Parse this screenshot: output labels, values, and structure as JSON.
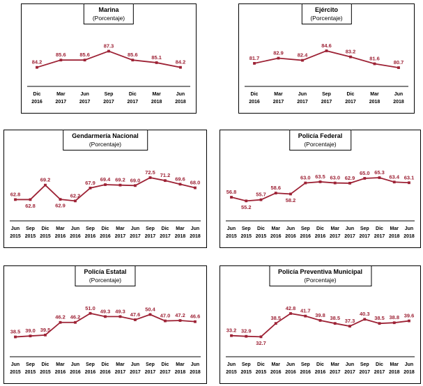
{
  "colors": {
    "series": "#9D2235",
    "text": "#000000",
    "frame": "#000000"
  },
  "chart_data": [
    {
      "type": "line",
      "id": "marina",
      "title": "Marina",
      "subtitle": "(Porcentaje)",
      "categories": [
        "Dic 2016",
        "Mar 2017",
        "Jun 2017",
        "Sep 2017",
        "Dic 2017",
        "Mar 2018",
        "Jun 2018"
      ],
      "values": [
        84.2,
        85.6,
        85.6,
        87.3,
        85.6,
        85.1,
        84.2
      ],
      "labels": [
        "84.2",
        "85.6",
        "85.6",
        "87.3",
        "85.6",
        "85.1",
        "84.2"
      ],
      "label_below": [],
      "legend": "none",
      "grid": false
    },
    {
      "type": "line",
      "id": "ejercito",
      "title": "Ejército",
      "subtitle": "(Porcentaje)",
      "categories": [
        "Dic 2016",
        "Mar 2017",
        "Jun 2017",
        "Sep 2017",
        "Dic 2017",
        "Mar 2018",
        "Jun 2018"
      ],
      "values": [
        81.7,
        82.9,
        82.4,
        84.6,
        83.2,
        81.6,
        80.7
      ],
      "labels": [
        "81.7",
        "82.9",
        "82.4",
        "84.6",
        "83.2",
        "81.6",
        "80.7"
      ],
      "label_below": [],
      "legend": "none",
      "grid": false
    },
    {
      "type": "line",
      "id": "gendarmeria-nacional",
      "title": "Gendarmería Nacional",
      "subtitle": "(Porcentaje)",
      "categories": [
        "Jun 2015",
        "Sep 2015",
        "Dic 2015",
        "Mar 2016",
        "Jun 2016",
        "Sep 2016",
        "Dic 2016",
        "Mar 2017",
        "Jun 2017",
        "Sep 2017",
        "Dic 2017",
        "Mar 2018",
        "Jun 2018"
      ],
      "values": [
        62.8,
        62.8,
        69.2,
        62.9,
        62.2,
        67.9,
        69.4,
        69.2,
        69.0,
        72.5,
        71.2,
        69.6,
        68.0
      ],
      "labels": [
        "62.8",
        "62.8",
        "69.2",
        "62.9",
        "62.2",
        "67.9",
        "69.4",
        "69.2",
        "69.0",
        "72.5",
        "71.2",
        "69.6",
        "68.0"
      ],
      "label_below": [
        1,
        3
      ],
      "legend": "none",
      "grid": false
    },
    {
      "type": "line",
      "id": "policia-federal",
      "title": "Policía Federal",
      "subtitle": "(Porcentaje)",
      "categories": [
        "Jun 2015",
        "Sep 2015",
        "Dic 2015",
        "Mar 2016",
        "Jun 2016",
        "Sep 2016",
        "Dic 2016",
        "Mar 2017",
        "Jun 2017",
        "Sep 2017",
        "Dic 2017",
        "Mar 2018",
        "Jun 2018"
      ],
      "values": [
        56.8,
        55.2,
        55.7,
        58.6,
        58.2,
        63.0,
        63.5,
        63.0,
        62.9,
        65.0,
        65.3,
        63.4,
        63.1
      ],
      "labels": [
        "56.8",
        "55.2",
        "55.7",
        "58.6",
        "58.2",
        "63.0",
        "63.5",
        "63.0",
        "62.9",
        "65.0",
        "65.3",
        "63.4",
        "63.1"
      ],
      "label_below": [
        1,
        4
      ],
      "legend": "none",
      "grid": false
    },
    {
      "type": "line",
      "id": "policia-estatal",
      "title": "Policía Estatal",
      "subtitle": "(Porcentaje)",
      "categories": [
        "Jun 2015",
        "Sep 2015",
        "Dic 2015",
        "Mar 2016",
        "Jun 2016",
        "Sep 2016",
        "Dic 2016",
        "Mar 2017",
        "Jun 2017",
        "Sep 2017",
        "Dic 2017",
        "Mar 2018",
        "Jun 2018"
      ],
      "values": [
        38.5,
        39.0,
        39.5,
        46.2,
        46.2,
        51.0,
        49.3,
        49.3,
        47.6,
        50.4,
        47.0,
        47.2,
        46.6
      ],
      "labels": [
        "38.5",
        "39.0",
        "39.5",
        "46.2",
        "46.2",
        "51.0",
        "49.3",
        "49.3",
        "47.6",
        "50.4",
        "47.0",
        "47.2",
        "46.6"
      ],
      "label_below": [],
      "legend": "none",
      "grid": false
    },
    {
      "type": "line",
      "id": "policia-preventiva-municipal",
      "title": "Policía Preventiva Municipal",
      "subtitle": "(Porcentaje)",
      "categories": [
        "Jun 2015",
        "Sep 2015",
        "Dic 2015",
        "Mar 2016",
        "Jun 2016",
        "Sep 2016",
        "Dic 2016",
        "Mar 2017",
        "Jun 2017",
        "Sep 2017",
        "Dic 2017",
        "Mar 2018",
        "Jun 2018"
      ],
      "values": [
        33.2,
        32.9,
        32.7,
        38.5,
        42.8,
        41.7,
        39.8,
        38.5,
        37.3,
        40.3,
        38.5,
        38.8,
        39.6
      ],
      "labels": [
        "33.2",
        "32.9",
        "32.7",
        "38.5",
        "42.8",
        "41.7",
        "39.8",
        "38.5",
        "37.3",
        "40.3",
        "38.5",
        "38.8",
        "39.6"
      ],
      "label_below": [
        2
      ],
      "legend": "none",
      "grid": false
    }
  ]
}
